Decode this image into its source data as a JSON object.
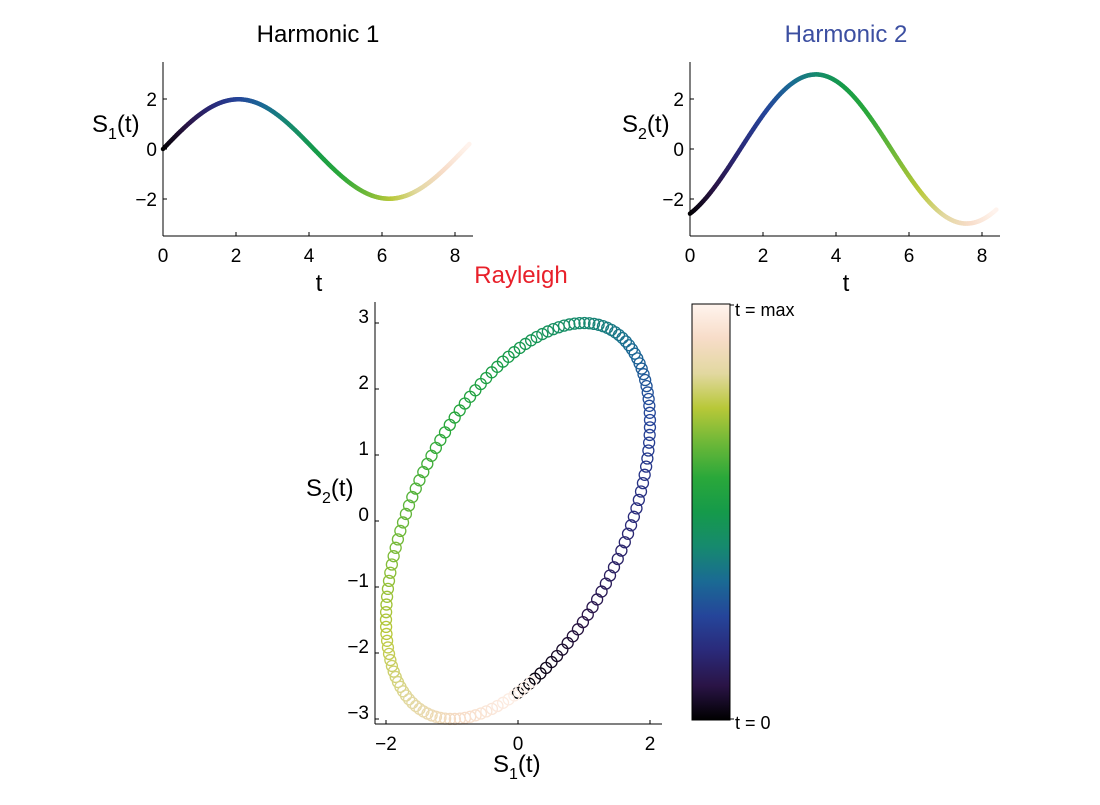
{
  "chart_data": [
    {
      "type": "line",
      "title": "Harmonic 1",
      "title_color": "#000000",
      "xlabel": "t",
      "ylabel_base": "S",
      "ylabel_sub": "1",
      "ylabel_suffix": "(t)",
      "xlim": [
        0,
        8.5
      ],
      "ylim": [
        -3.5,
        3.5
      ],
      "xticks": [
        "0",
        "2",
        "4",
        "6",
        "8"
      ],
      "yticks": [
        "−2",
        "0",
        "2"
      ],
      "series": [
        {
          "amplitude": 2,
          "omega": 0.76,
          "phase": 0,
          "x": [
            0,
            1,
            2,
            3,
            4,
            5,
            6,
            7,
            8,
            8.4
          ],
          "values": [
            0,
            1.38,
            2.0,
            1.5,
            0.2,
            -1.23,
            -1.99,
            -1.66,
            -0.49,
            0.42
          ]
        }
      ],
      "grid": false
    },
    {
      "type": "line",
      "title": "Harmonic 2",
      "title_color": "#3c4fa1",
      "xlabel": "t",
      "ylabel_base": "S",
      "ylabel_sub": "2",
      "ylabel_suffix": "(t)",
      "xlim": [
        0,
        8.5
      ],
      "ylim": [
        -3.5,
        3.5
      ],
      "xticks": [
        "0",
        "2",
        "4",
        "6",
        "8"
      ],
      "yticks": [
        "−2",
        "0",
        "2"
      ],
      "series": [
        {
          "amplitude": 3,
          "omega": 0.76,
          "phase": -1.05,
          "x": [
            0,
            1,
            2,
            3,
            3.4,
            4,
            5,
            6,
            7,
            7.5,
            8.4
          ],
          "values": [
            -2.6,
            -1.29,
            0.91,
            2.76,
            3.0,
            2.64,
            0.83,
            -1.37,
            -2.85,
            -3.0,
            -2.2
          ]
        }
      ],
      "grid": false
    },
    {
      "type": "scatter",
      "title": "Rayleigh",
      "title_color": "#e8202a",
      "xlabel_base": "S",
      "xlabel_sub": "1",
      "xlabel_suffix": "(t)",
      "ylabel_base": "S",
      "ylabel_sub": "2",
      "ylabel_suffix": "(t)",
      "xlim": [
        -2.2,
        2.2
      ],
      "ylim": [
        -3.2,
        3.2
      ],
      "xticks": [
        "−2",
        "0",
        "2"
      ],
      "yticks": [
        "3",
        "2",
        "1",
        "0",
        "−1",
        "−2",
        "−3"
      ],
      "marker": "open-circle",
      "points": {
        "count": 150,
        "t_max": 8.4,
        "s1_amplitude": 2,
        "s2_amplitude": 3,
        "omega": 0.76,
        "s2_phase": -1.05
      },
      "colorbar": {
        "label_top": "t = max",
        "label_bottom": "t = 0"
      },
      "grid": false
    }
  ],
  "colormap": [
    "#000000",
    "#2a1446",
    "#2a2a7a",
    "#25459a",
    "#1a6a94",
    "#168a6e",
    "#159a4a",
    "#2aa83a",
    "#6eb838",
    "#b8c838",
    "#e2d8a0",
    "#f7dcc8",
    "#fff4ee"
  ]
}
